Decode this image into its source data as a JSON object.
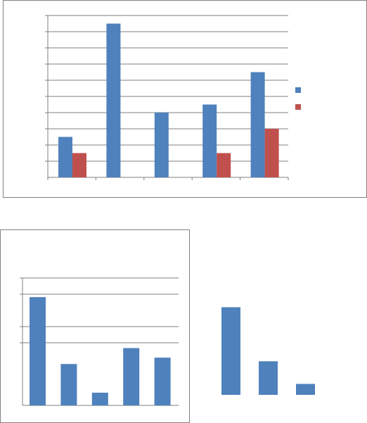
{
  "colors": {
    "series_blue": "#4f81bd",
    "series_red": "#c0504d",
    "gridline": "#7f7f7f",
    "axis": "#7f7f7f",
    "frame": "#808080",
    "background": "#ffffff"
  },
  "chart_data": [
    {
      "type": "bar",
      "title": "",
      "xlabel": "",
      "ylabel": "",
      "categories": [
        "",
        "",
        "",
        "",
        ""
      ],
      "series": [
        {
          "values": [
            2.5,
            9.5,
            4,
            4.5,
            6.5
          ]
        },
        {
          "values": [
            1.5,
            0,
            0,
            1.5,
            3
          ]
        }
      ],
      "ylim": [
        0,
        10
      ],
      "grid": true,
      "legend": "right"
    },
    {
      "type": "bar",
      "title": "",
      "xlabel": "",
      "ylabel": "",
      "categories": [
        "",
        "",
        "",
        "",
        ""
      ],
      "series": [
        {
          "values": [
            6.8,
            2.6,
            0.8,
            3.6,
            3.0
          ]
        }
      ],
      "ylim": [
        0,
        8
      ],
      "grid": true,
      "legend": "none"
    },
    {
      "type": "bar",
      "title": "",
      "xlabel": "",
      "ylabel": "",
      "categories": [
        "",
        "",
        ""
      ],
      "series": [
        {
          "values": [
            6.0,
            2.3,
            0.75
          ]
        }
      ],
      "ylim": [
        0,
        8
      ],
      "grid": false,
      "legend": "none"
    }
  ]
}
